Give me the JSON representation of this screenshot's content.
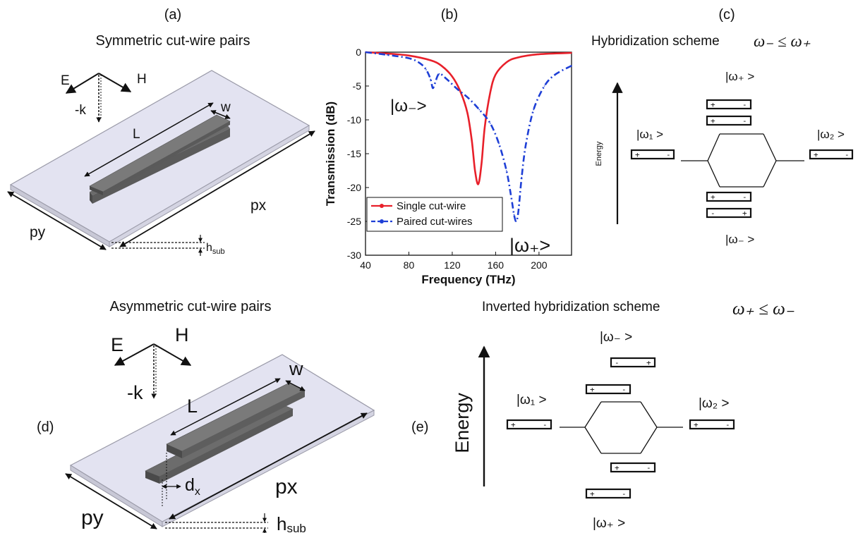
{
  "panel_labels": {
    "a": "(a)",
    "b": "(b)",
    "c": "(c)",
    "d": "(d)",
    "e": "(e)"
  },
  "panel_a": {
    "title": "Symmetric cut-wire pairs",
    "E": "E",
    "H": "H",
    "k": "-k",
    "L": "L",
    "w": "w",
    "px": "px",
    "py": "py",
    "hsub": "h",
    "hsub_sub": "sub"
  },
  "panel_d": {
    "title": "Asymmetric cut-wire pairs",
    "E": "E",
    "H": "H",
    "k": "-k",
    "L": "L",
    "w": "w",
    "px": "px",
    "py": "py",
    "hsub": "h",
    "hsub_sub": "sub",
    "dx": "d",
    "dx_sub": "x"
  },
  "panel_c": {
    "title": "Hybridization scheme",
    "relation": "ω₋ ≤ ω₊",
    "energy": "Energy",
    "w1": "|ω₁ >",
    "w2": "|ω₂ >",
    "wplus": "|ω₊ >",
    "wminus": "|ω₋ >"
  },
  "panel_e": {
    "title": "Inverted hybridization scheme",
    "relation": "ω₊ ≤ ω₋",
    "energy": "Energy",
    "w1": "|ω₁ >",
    "w2": "|ω₂ >",
    "wplus": "|ω₊ >",
    "wminus": "|ω₋ >"
  },
  "chart_annotations": {
    "w_minus": "|ω₋>",
    "w_plus": "|ω₊>"
  },
  "chart_data": {
    "type": "line",
    "xlabel": "Frequency (THz)",
    "ylabel": "Transmission (dB)",
    "xlim": [
      40,
      230
    ],
    "ylim": [
      -30,
      0
    ],
    "xticks": [
      40,
      80,
      120,
      160,
      200
    ],
    "yticks": [
      0,
      -5,
      -10,
      -15,
      -20,
      -25,
      -30
    ],
    "legend_position": "bottom-left",
    "series": [
      {
        "name": "Single cut-wire",
        "color": "#e8202a",
        "style": "solid",
        "x": [
          40,
          60,
          80,
          100,
          110,
          120,
          128,
          134,
          138,
          141,
          144,
          147,
          150,
          155,
          160,
          170,
          180,
          200,
          230
        ],
        "y": [
          0,
          -0.2,
          -0.5,
          -1.2,
          -2.0,
          -3.6,
          -6.0,
          -9.0,
          -13.0,
          -17.5,
          -19.5,
          -16.5,
          -11.0,
          -6.0,
          -3.3,
          -1.5,
          -0.8,
          -0.3,
          -0.1
        ]
      },
      {
        "name": "Paired cut-wires",
        "color": "#1e3fd6",
        "style": "dashed",
        "x": [
          40,
          60,
          80,
          90,
          96,
          100,
          102,
          104,
          108,
          115,
          125,
          135,
          145,
          155,
          163,
          170,
          174,
          177,
          179,
          181,
          184,
          188,
          195,
          205,
          215,
          230
        ],
        "y": [
          0,
          -0.4,
          -0.9,
          -1.6,
          -2.6,
          -4.0,
          -5.3,
          -4.6,
          -3.2,
          -4.0,
          -5.5,
          -6.8,
          -8.5,
          -10.5,
          -13.5,
          -17.5,
          -21.0,
          -24.0,
          -25.0,
          -23.5,
          -18.5,
          -13.5,
          -8.5,
          -5.0,
          -3.3,
          -2.0
        ]
      }
    ]
  }
}
